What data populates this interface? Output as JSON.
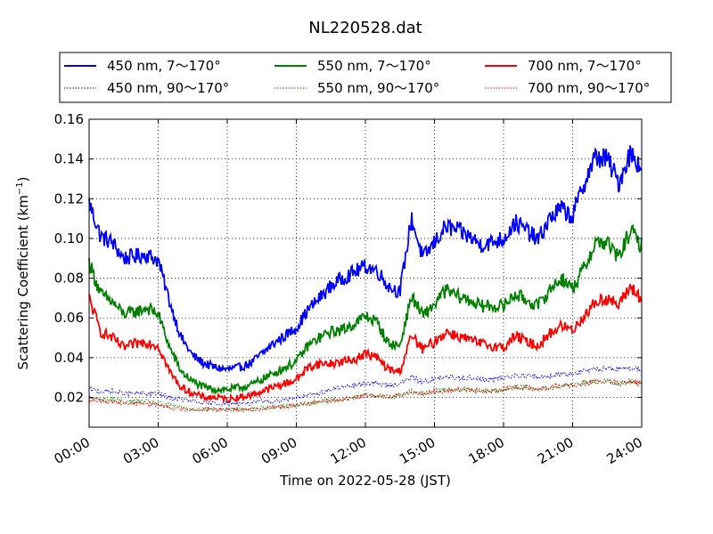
{
  "chart_data": {
    "type": "line",
    "title": "NL220528.dat",
    "xlabel": "Time on 2022-05-28 (JST)",
    "ylabel": "Scattering Coefficient (km",
    "ylabel_sup": "−1",
    "ylabel_close": ")",
    "x_unit": "hour",
    "xlim": [
      0,
      24
    ],
    "ylim": [
      0.005,
      0.16
    ],
    "xticks": [
      {
        "value": 0,
        "label": "00:00"
      },
      {
        "value": 3,
        "label": "03:00"
      },
      {
        "value": 6,
        "label": "06:00"
      },
      {
        "value": 9,
        "label": "09:00"
      },
      {
        "value": 12,
        "label": "12:00"
      },
      {
        "value": 15,
        "label": "15:00"
      },
      {
        "value": 18,
        "label": "18:00"
      },
      {
        "value": 21,
        "label": "21:00"
      },
      {
        "value": 24,
        "label": "24:00"
      }
    ],
    "yticks": [
      {
        "value": 0.02,
        "label": "0.02"
      },
      {
        "value": 0.04,
        "label": "0.04"
      },
      {
        "value": 0.06,
        "label": "0.06"
      },
      {
        "value": 0.08,
        "label": "0.08"
      },
      {
        "value": 0.1,
        "label": "0.10"
      },
      {
        "value": 0.12,
        "label": "0.12"
      },
      {
        "value": 0.14,
        "label": "0.14"
      },
      {
        "value": 0.16,
        "label": "0.16"
      }
    ],
    "grid": true,
    "legend_position": "top",
    "x": [
      0,
      0.5,
      1,
      1.5,
      2,
      2.5,
      3,
      3.5,
      4,
      4.5,
      5,
      5.5,
      6,
      6.5,
      7,
      7.5,
      8,
      8.5,
      9,
      9.5,
      10,
      10.5,
      11,
      11.5,
      12,
      12.5,
      13,
      13.5,
      14,
      14.5,
      15,
      15.5,
      16,
      16.5,
      17,
      17.5,
      18,
      18.5,
      19,
      19.5,
      20,
      20.5,
      21,
      21.5,
      22,
      22.5,
      23,
      23.5,
      24
    ],
    "series": [
      {
        "name": "450 nm, 7～170°",
        "color": "#0000ff",
        "style": "solid",
        "values": [
          0.118,
          0.101,
          0.098,
          0.09,
          0.091,
          0.092,
          0.089,
          0.068,
          0.05,
          0.041,
          0.037,
          0.035,
          0.034,
          0.035,
          0.037,
          0.042,
          0.047,
          0.051,
          0.055,
          0.064,
          0.07,
          0.076,
          0.08,
          0.083,
          0.086,
          0.084,
          0.076,
          0.073,
          0.11,
          0.09,
          0.098,
          0.106,
          0.104,
          0.101,
          0.097,
          0.098,
          0.1,
          0.108,
          0.104,
          0.099,
          0.11,
          0.115,
          0.111,
          0.128,
          0.141,
          0.14,
          0.128,
          0.143,
          0.136
        ]
      },
      {
        "name": "550 nm, 7～170°",
        "color": "#008000",
        "style": "solid",
        "values": [
          0.088,
          0.072,
          0.068,
          0.062,
          0.063,
          0.065,
          0.062,
          0.045,
          0.033,
          0.028,
          0.025,
          0.024,
          0.024,
          0.025,
          0.026,
          0.029,
          0.032,
          0.035,
          0.038,
          0.046,
          0.05,
          0.053,
          0.054,
          0.057,
          0.061,
          0.058,
          0.047,
          0.046,
          0.071,
          0.061,
          0.067,
          0.074,
          0.071,
          0.069,
          0.066,
          0.066,
          0.066,
          0.072,
          0.069,
          0.066,
          0.074,
          0.08,
          0.075,
          0.085,
          0.098,
          0.098,
          0.09,
          0.104,
          0.096
        ]
      },
      {
        "name": "700 nm, 7～170°",
        "color": "#ff0000",
        "style": "solid",
        "values": [
          0.07,
          0.053,
          0.05,
          0.045,
          0.047,
          0.048,
          0.046,
          0.033,
          0.025,
          0.022,
          0.02,
          0.02,
          0.019,
          0.02,
          0.021,
          0.023,
          0.025,
          0.027,
          0.029,
          0.035,
          0.037,
          0.037,
          0.038,
          0.039,
          0.042,
          0.04,
          0.034,
          0.033,
          0.051,
          0.044,
          0.048,
          0.053,
          0.051,
          0.049,
          0.047,
          0.046,
          0.045,
          0.051,
          0.048,
          0.046,
          0.052,
          0.056,
          0.054,
          0.061,
          0.068,
          0.07,
          0.066,
          0.076,
          0.069
        ]
      },
      {
        "name": "450 nm, 90～170°",
        "color": "#0000ff",
        "style": "dotted",
        "values": [
          0.024,
          0.023,
          0.023,
          0.022,
          0.022,
          0.022,
          0.022,
          0.02,
          0.019,
          0.018,
          0.017,
          0.017,
          0.017,
          0.017,
          0.017,
          0.018,
          0.018,
          0.019,
          0.02,
          0.021,
          0.022,
          0.024,
          0.025,
          0.026,
          0.027,
          0.027,
          0.026,
          0.027,
          0.03,
          0.028,
          0.029,
          0.03,
          0.03,
          0.03,
          0.029,
          0.029,
          0.03,
          0.031,
          0.031,
          0.03,
          0.031,
          0.032,
          0.032,
          0.033,
          0.034,
          0.035,
          0.034,
          0.035,
          0.034
        ]
      },
      {
        "name": "550 nm, 90～170°",
        "color": "#008000",
        "style": "dotted",
        "values": [
          0.02,
          0.019,
          0.019,
          0.018,
          0.018,
          0.018,
          0.017,
          0.016,
          0.015,
          0.014,
          0.014,
          0.014,
          0.014,
          0.014,
          0.014,
          0.015,
          0.015,
          0.016,
          0.016,
          0.017,
          0.018,
          0.019,
          0.019,
          0.02,
          0.021,
          0.021,
          0.02,
          0.021,
          0.023,
          0.022,
          0.023,
          0.024,
          0.024,
          0.024,
          0.023,
          0.023,
          0.024,
          0.025,
          0.025,
          0.024,
          0.025,
          0.026,
          0.026,
          0.027,
          0.028,
          0.028,
          0.027,
          0.028,
          0.027
        ]
      },
      {
        "name": "700 nm, 90～170°",
        "color": "#ff0000",
        "style": "dotted",
        "values": [
          0.019,
          0.018,
          0.018,
          0.017,
          0.017,
          0.017,
          0.016,
          0.015,
          0.014,
          0.014,
          0.014,
          0.014,
          0.014,
          0.014,
          0.014,
          0.014,
          0.015,
          0.015,
          0.016,
          0.017,
          0.018,
          0.018,
          0.019,
          0.02,
          0.021,
          0.021,
          0.02,
          0.021,
          0.023,
          0.022,
          0.023,
          0.023,
          0.024,
          0.024,
          0.023,
          0.023,
          0.024,
          0.025,
          0.025,
          0.024,
          0.025,
          0.026,
          0.026,
          0.027,
          0.028,
          0.028,
          0.027,
          0.028,
          0.027
        ]
      }
    ]
  }
}
